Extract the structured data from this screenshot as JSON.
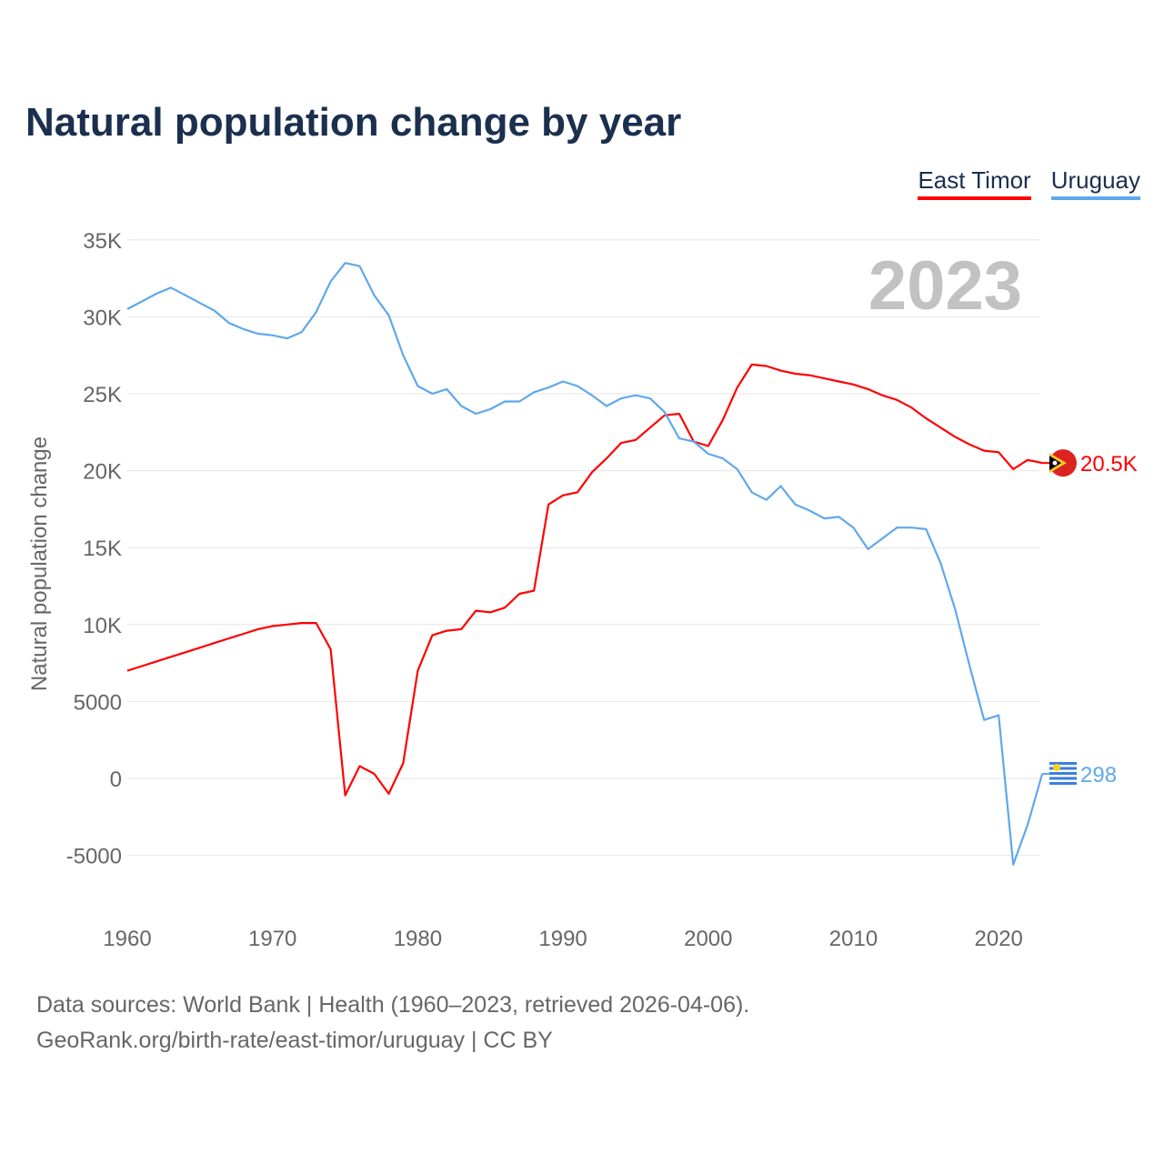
{
  "title": "Natural population change by year",
  "footer": {
    "line1": "Data sources: World Bank | Health (1960–2023, retrieved 2026-04-06).",
    "line2": "GeoRank.org/birth-rate/east-timor/uruguay | CC BY"
  },
  "chart_data": {
    "type": "line",
    "title": "Natural population change by year",
    "xlabel": "",
    "ylabel": "Natural population change",
    "year_label": "2023",
    "xlim": [
      1960,
      2023
    ],
    "ylim": [
      -5000,
      35000
    ],
    "x_ticks": [
      "1960",
      "1970",
      "1980",
      "1990",
      "2000",
      "2010",
      "2020"
    ],
    "y_ticks": [
      {
        "v": 35000,
        "label": "35K"
      },
      {
        "v": 30000,
        "label": "30K"
      },
      {
        "v": 25000,
        "label": "25K"
      },
      {
        "v": 20000,
        "label": "20K"
      },
      {
        "v": 15000,
        "label": "15K"
      },
      {
        "v": 10000,
        "label": "10K"
      },
      {
        "v": 5000,
        "label": "5000"
      },
      {
        "v": 0,
        "label": "0"
      },
      {
        "v": -5000,
        "label": "-5000"
      }
    ],
    "grid": true,
    "legend_position": "top-right",
    "x_start": 1960,
    "series": [
      {
        "name": "East Timor",
        "color": "#ff0000",
        "end_label": "20.5K",
        "values": [
          7000,
          7300,
          7600,
          7900,
          8200,
          8500,
          8800,
          9100,
          9400,
          9700,
          9900,
          10000,
          10100,
          10100,
          8400,
          -1100,
          800,
          300,
          -1000,
          1000,
          7000,
          9300,
          9600,
          9700,
          10900,
          10800,
          11100,
          12000,
          12200,
          17800,
          18400,
          18600,
          19900,
          20800,
          21800,
          22000,
          22800,
          23600,
          23700,
          21900,
          21600,
          23300,
          25400,
          26900,
          26800,
          26500,
          26300,
          26200,
          26000,
          25800,
          25600,
          25300,
          24900,
          24600,
          24100,
          23400,
          22800,
          22200,
          21700,
          21300,
          21200,
          20100,
          20700,
          20500
        ]
      },
      {
        "name": "Uruguay",
        "color": "#5fa8ec",
        "end_label": "298",
        "values": [
          30500,
          31000,
          31500,
          31900,
          31400,
          30900,
          30400,
          29600,
          29200,
          28900,
          28800,
          28600,
          29000,
          30300,
          32300,
          33500,
          33300,
          31400,
          30100,
          27500,
          25500,
          25000,
          25300,
          24200,
          23700,
          24000,
          24500,
          24500,
          25100,
          25400,
          25800,
          25500,
          24900,
          24200,
          24700,
          24900,
          24700,
          23800,
          22100,
          21900,
          21100,
          20800,
          20100,
          18600,
          18100,
          19000,
          17800,
          17400,
          16900,
          17000,
          16300,
          14900,
          15600,
          16300,
          16300,
          16200,
          14000,
          11000,
          7300,
          3800,
          4100,
          -5600,
          -3000,
          298
        ]
      }
    ]
  }
}
